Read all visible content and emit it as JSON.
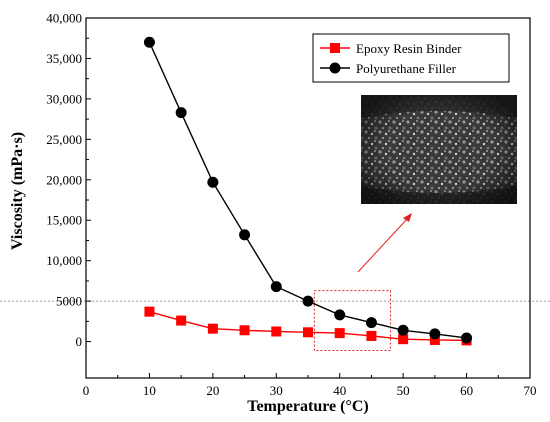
{
  "chart_data": {
    "type": "line",
    "xlabel": "Temperature (°C)",
    "ylabel": "Viscosity (mPa·s)",
    "xlim": [
      0,
      70
    ],
    "ylim": [
      -4500,
      40000
    ],
    "xticks": [
      0,
      10,
      20,
      30,
      40,
      50,
      60,
      70
    ],
    "yticks": [
      0,
      5000,
      10000,
      15000,
      20000,
      25000,
      30000,
      35000,
      40000
    ],
    "ytick_labels": [
      "0",
      "5000",
      "10,000",
      "15,000",
      "20,000",
      "25,000",
      "30,000",
      "35,000",
      "40,000"
    ],
    "grid": false,
    "legend_position": "top-right",
    "reference_line": {
      "y": 5000,
      "style": "dotted",
      "color": "#999999"
    },
    "highlight_box": {
      "x": [
        36,
        48
      ],
      "y": [
        -1100,
        6300
      ],
      "color": "#e02020",
      "style": "dotted"
    },
    "inset": "photo of granular black polyurethane filler in a container",
    "series": [
      {
        "name": "Epoxy Resin Binder",
        "marker": "square",
        "color": "#ff0000",
        "x": [
          10,
          15,
          20,
          25,
          30,
          35,
          40,
          45,
          50,
          55,
          60
        ],
        "y": [
          3700,
          2600,
          1600,
          1400,
          1250,
          1150,
          1050,
          700,
          300,
          200,
          150
        ]
      },
      {
        "name": "Polyurethane Filler",
        "marker": "circle",
        "color": "#000000",
        "x": [
          10,
          15,
          20,
          25,
          30,
          35,
          40,
          45,
          50,
          55,
          60
        ],
        "y": [
          37000,
          28300,
          19700,
          13200,
          6800,
          5000,
          3300,
          2350,
          1400,
          950,
          450
        ]
      }
    ]
  }
}
